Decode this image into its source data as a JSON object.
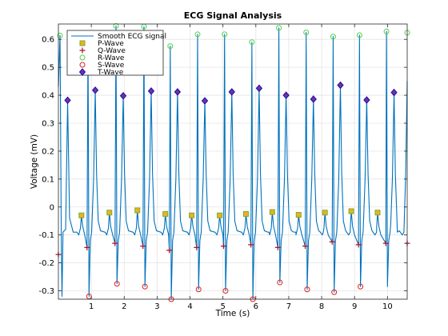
{
  "chart_data": {
    "type": "line",
    "title": "ECG Signal Analysis",
    "xlabel": "Time (s)",
    "ylabel": "Voltage (mV)",
    "xlim": [
      0,
      10.6
    ],
    "ylim": [
      -0.33,
      0.655
    ],
    "xticks": [
      1,
      2,
      3,
      4,
      5,
      6,
      7,
      8,
      9,
      10
    ],
    "yticks": [
      -0.3,
      -0.2,
      -0.1,
      0,
      0.1,
      0.2,
      0.3,
      0.4,
      0.5,
      0.6
    ],
    "xtick_labels": [
      "1",
      "2",
      "3",
      "4",
      "5",
      "6",
      "7",
      "8",
      "9",
      "10"
    ],
    "ytick_labels": [
      "-0.3",
      "-0.2",
      "-0.1",
      "0",
      "0.1",
      "0.2",
      "0.3",
      "0.4",
      "0.5",
      "0.6"
    ],
    "grid": true,
    "legend_position": "top-left",
    "colors": {
      "signal": "#0072bd",
      "p_face": "#edb120",
      "p_edge": "#77ac30",
      "q": "#a2142f",
      "r": "#4dd24d",
      "s": "#e02020",
      "t_face": "#7e2f8e",
      "t_edge": "#1010c0"
    },
    "beats": {
      "p": [
        0.7,
        1.55,
        2.4,
        3.25,
        4.05,
        4.9,
        5.7,
        6.5,
        7.3,
        8.1,
        8.9,
        9.7
      ],
      "q": [
        0.87,
        1.72,
        2.57,
        3.37,
        4.2,
        5.02,
        5.85,
        6.67,
        7.5,
        8.32,
        9.12,
        9.95
      ],
      "r": [
        0.9,
        1.75,
        2.6,
        3.4,
        4.23,
        5.05,
        5.88,
        6.7,
        7.53,
        8.35,
        9.15,
        9.97
      ],
      "s": [
        0.93,
        1.78,
        2.63,
        3.43,
        4.26,
        5.08,
        5.91,
        6.73,
        7.56,
        8.38,
        9.18,
        10.0
      ],
      "t": [
        1.12,
        1.97,
        2.82,
        3.62,
        4.45,
        5.27,
        6.1,
        6.92,
        7.75,
        8.57,
        9.37,
        10.2
      ]
    },
    "series": [
      {
        "name": "Smooth ECG signal",
        "points": [
          [
            0.0,
            0.43
          ],
          [
            0.05,
            0.614
          ],
          [
            0.09,
            -0.16
          ],
          [
            0.11,
            -0.32
          ],
          [
            0.14,
            -0.09
          ],
          [
            0.22,
            -0.08
          ],
          [
            0.28,
            0.38
          ],
          [
            0.34,
            -0.04
          ],
          [
            0.45,
            -0.09
          ],
          [
            10.6,
            0.45
          ]
        ]
      },
      {
        "name": "P-Wave",
        "points": [
          [
            0.7,
            -0.03
          ],
          [
            1.55,
            -0.02
          ],
          [
            2.4,
            -0.012
          ],
          [
            3.25,
            -0.025
          ],
          [
            4.05,
            -0.03
          ],
          [
            4.9,
            -0.03
          ],
          [
            5.7,
            -0.025
          ],
          [
            6.5,
            -0.018
          ],
          [
            7.3,
            -0.028
          ],
          [
            8.1,
            -0.02
          ],
          [
            8.9,
            -0.015
          ],
          [
            9.7,
            -0.02
          ]
        ]
      },
      {
        "name": "Q-Wave",
        "points": [
          [
            0.0,
            -0.17
          ],
          [
            0.87,
            -0.145
          ],
          [
            1.72,
            -0.13
          ],
          [
            2.57,
            -0.14
          ],
          [
            3.37,
            -0.155
          ],
          [
            4.2,
            -0.145
          ],
          [
            5.02,
            -0.14
          ],
          [
            5.85,
            -0.135
          ],
          [
            6.67,
            -0.145
          ],
          [
            7.5,
            -0.14
          ],
          [
            8.32,
            -0.125
          ],
          [
            9.12,
            -0.135
          ],
          [
            9.95,
            -0.13
          ],
          [
            10.6,
            -0.13
          ]
        ]
      },
      {
        "name": "R-Wave",
        "points": [
          [
            0.05,
            0.614
          ],
          [
            0.9,
            0.61
          ],
          [
            1.75,
            0.648
          ],
          [
            2.6,
            0.646
          ],
          [
            3.4,
            0.576
          ],
          [
            4.23,
            0.618
          ],
          [
            5.05,
            0.618
          ],
          [
            5.88,
            0.59
          ],
          [
            6.7,
            0.641
          ],
          [
            7.53,
            0.625
          ],
          [
            8.35,
            0.61
          ],
          [
            9.15,
            0.615
          ],
          [
            9.97,
            0.628
          ],
          [
            10.6,
            0.624
          ]
        ]
      },
      {
        "name": "S-Wave",
        "points": [
          [
            0.93,
            -0.32
          ],
          [
            1.78,
            -0.275
          ],
          [
            2.63,
            -0.285
          ],
          [
            3.43,
            -0.33
          ],
          [
            4.26,
            -0.295
          ],
          [
            5.08,
            -0.3
          ],
          [
            5.91,
            -0.33
          ],
          [
            6.73,
            -0.27
          ],
          [
            7.56,
            -0.295
          ],
          [
            8.38,
            -0.305
          ],
          [
            9.18,
            -0.285
          ]
        ]
      },
      {
        "name": "T-Wave",
        "points": [
          [
            0.28,
            0.382
          ],
          [
            1.12,
            0.418
          ],
          [
            1.97,
            0.398
          ],
          [
            2.82,
            0.415
          ],
          [
            3.62,
            0.412
          ],
          [
            4.45,
            0.38
          ],
          [
            5.27,
            0.412
          ],
          [
            6.1,
            0.425
          ],
          [
            6.92,
            0.4
          ],
          [
            7.75,
            0.386
          ],
          [
            8.57,
            0.436
          ],
          [
            9.37,
            0.383
          ],
          [
            10.2,
            0.41
          ]
        ]
      }
    ]
  }
}
